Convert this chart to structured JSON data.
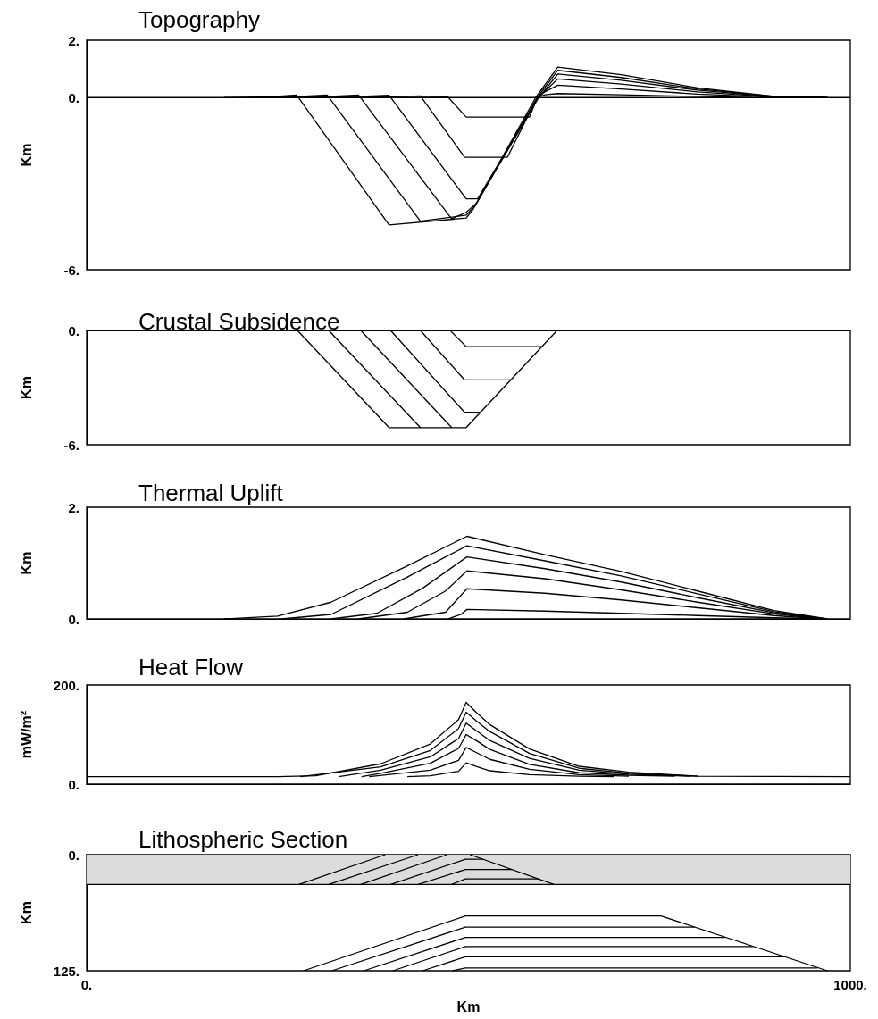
{
  "chart_data": [
    {
      "type": "line",
      "title": "Topography",
      "ylabel": "Km",
      "xlim": [
        0,
        1000
      ],
      "ylim": [
        -6,
        2
      ],
      "yticks": [
        {
          "value": 2,
          "label": "2."
        },
        {
          "value": 0,
          "label": "0."
        },
        {
          "value": -6,
          "label": "-6."
        }
      ],
      "tick_labels": "y",
      "grid": false,
      "marker": "none",
      "line_style": "solid",
      "series": [
        {
          "color": "#000000",
          "x": [
            0,
            1000
          ],
          "values": [
            0,
            0
          ]
        },
        {
          "color": "#000000",
          "x": [
            400,
            450,
            473,
            497,
            580,
            590,
            600,
            617,
            700,
            800,
            870
          ],
          "values": [
            0,
            0.01,
            0.02,
            -0.68,
            -0.68,
            0,
            0.1,
            0.14,
            0.1,
            0.04,
            0
          ]
        },
        {
          "color": "#000000",
          "x": [
            330,
            400,
            437,
            495,
            551,
            590,
            600,
            617,
            700,
            800,
            900,
            950
          ],
          "values": [
            0,
            0.03,
            0.06,
            -2.08,
            -2.08,
            0,
            0.2,
            0.43,
            0.3,
            0.12,
            0.01,
            0
          ]
        },
        {
          "color": "#000000",
          "x": [
            290,
            360,
            396,
            497,
            512,
            591,
            617,
            700,
            800,
            900,
            960
          ],
          "values": [
            0,
            0.04,
            0.08,
            -3.53,
            -3.53,
            0,
            0.65,
            0.47,
            0.2,
            0.02,
            0
          ]
        },
        {
          "color": "#000000",
          "x": [
            250,
            320,
            356,
            478,
            497,
            510,
            592,
            617,
            700,
            800,
            900,
            970
          ],
          "values": [
            0,
            0.04,
            0.09,
            -4.23,
            -4.0,
            -3.7,
            0,
            0.82,
            0.6,
            0.26,
            0.03,
            0
          ]
        },
        {
          "color": "#000000",
          "x": [
            220,
            280,
            315,
            437,
            497,
            508,
            590,
            617,
            700,
            800,
            900,
            970
          ],
          "values": [
            0,
            0.04,
            0.09,
            -4.31,
            -4.1,
            -3.8,
            0,
            0.95,
            0.7,
            0.3,
            0.04,
            0
          ]
        },
        {
          "color": "#000000",
          "x": [
            180,
            240,
            275,
            396,
            497,
            506,
            588,
            617,
            700,
            800,
            900,
            970
          ],
          "values": [
            0,
            0.03,
            0.09,
            -4.44,
            -4.2,
            -3.9,
            0,
            1.06,
            0.8,
            0.34,
            0.04,
            0
          ]
        }
      ]
    },
    {
      "type": "line",
      "title": "Crustal Subsidence",
      "ylabel": "Km",
      "xlim": [
        0,
        1000
      ],
      "ylim": [
        -6,
        0
      ],
      "yticks": [
        {
          "value": 0,
          "label": "0."
        },
        {
          "value": -6,
          "label": "-6."
        }
      ],
      "tick_labels": "y",
      "grid": false,
      "marker": "none",
      "line_style": "solid",
      "series": [
        {
          "color": "#000000",
          "x": [
            476,
            497,
            596
          ],
          "values": [
            0,
            -0.85,
            -0.85
          ]
        },
        {
          "color": "#000000",
          "x": [
            437,
            495,
            555
          ],
          "values": [
            0,
            -2.6,
            -2.6
          ]
        },
        {
          "color": "#000000",
          "x": [
            398,
            495,
            516
          ],
          "values": [
            0,
            -4.3,
            -4.3
          ]
        },
        {
          "color": "#000000",
          "x": [
            359,
            478
          ],
          "values": [
            0,
            -5.1
          ]
        },
        {
          "color": "#000000",
          "x": [
            317,
            437
          ],
          "values": [
            0,
            -5.1
          ]
        },
        {
          "color": "#000000",
          "x": [
            276,
            396,
            497,
            616
          ],
          "values": [
            0,
            -5.1,
            -5.1,
            0
          ]
        }
      ]
    },
    {
      "type": "line",
      "title": "Thermal Uplift",
      "ylabel": "Km",
      "xlim": [
        0,
        1000
      ],
      "ylim": [
        0,
        2
      ],
      "yticks": [
        {
          "value": 2,
          "label": "2."
        },
        {
          "value": 0,
          "label": "0."
        }
      ],
      "tick_labels": "y",
      "grid": false,
      "marker": "none",
      "line_style": "solid",
      "series": [
        {
          "color": "#000000",
          "x": [
            180,
            250,
            320,
            420,
            498,
            600,
            700,
            800,
            900,
            970
          ],
          "values": [
            0,
            0.05,
            0.3,
            0.95,
            1.48,
            1.15,
            0.85,
            0.5,
            0.15,
            0
          ]
        },
        {
          "color": "#000000",
          "x": [
            255,
            320,
            420,
            498,
            600,
            700,
            800,
            900,
            968
          ],
          "values": [
            0,
            0.08,
            0.75,
            1.31,
            1.04,
            0.77,
            0.45,
            0.13,
            0
          ]
        },
        {
          "color": "#000000",
          "x": [
            320,
            380,
            440,
            498,
            600,
            700,
            800,
            900,
            966
          ],
          "values": [
            0,
            0.1,
            0.55,
            1.11,
            0.9,
            0.66,
            0.38,
            0.11,
            0
          ]
        },
        {
          "color": "#000000",
          "x": [
            356,
            420,
            470,
            498,
            600,
            700,
            800,
            900,
            964
          ],
          "values": [
            0,
            0.12,
            0.5,
            0.86,
            0.72,
            0.52,
            0.3,
            0.09,
            0
          ]
        },
        {
          "color": "#000000",
          "x": [
            415,
            470,
            498,
            600,
            700,
            800,
            900,
            962
          ],
          "values": [
            0,
            0.12,
            0.54,
            0.46,
            0.34,
            0.2,
            0.06,
            0
          ]
        },
        {
          "color": "#000000",
          "x": [
            473,
            490,
            498,
            600,
            700,
            800,
            900,
            960
          ],
          "values": [
            0,
            0.08,
            0.17,
            0.14,
            0.1,
            0.06,
            0.02,
            0
          ]
        }
      ]
    },
    {
      "type": "line",
      "title": "Heat Flow",
      "ylabel": "mW/m²",
      "xlim": [
        0,
        1000
      ],
      "ylim": [
        0,
        200
      ],
      "yticks": [
        {
          "value": 200,
          "label": "200."
        },
        {
          "value": 0,
          "label": "0."
        }
      ],
      "tick_labels": "y",
      "grid": false,
      "marker": "none",
      "line_style": "solid",
      "series": [
        {
          "color": "#000000",
          "x": [
            0,
            250,
            300,
            385,
            450,
            487,
            497,
            510,
            528,
            580,
            645,
            710,
            800,
            1000
          ],
          "values": [
            15,
            15,
            17,
            41,
            81,
            130,
            165,
            145,
            120,
            71,
            36,
            24,
            16,
            15
          ]
        },
        {
          "color": "#000000",
          "x": [
            280,
            385,
            450,
            487,
            497,
            510,
            528,
            580,
            645,
            710,
            800
          ],
          "values": [
            15,
            35,
            68,
            112,
            145,
            128,
            106,
            62,
            32,
            22,
            16
          ]
        },
        {
          "color": "#000000",
          "x": [
            330,
            385,
            450,
            487,
            497,
            510,
            528,
            580,
            645,
            710,
            790
          ],
          "values": [
            15,
            28,
            55,
            92,
            123,
            108,
            88,
            52,
            28,
            20,
            16
          ]
        },
        {
          "color": "#000000",
          "x": [
            360,
            385,
            450,
            487,
            497,
            510,
            528,
            580,
            645,
            710,
            770
          ],
          "values": [
            15,
            22,
            42,
            72,
            100,
            88,
            70,
            40,
            23,
            18,
            16
          ]
        },
        {
          "color": "#000000",
          "x": [
            370,
            450,
            487,
            497,
            510,
            528,
            580,
            645,
            710
          ],
          "values": [
            15,
            28,
            48,
            74,
            64,
            50,
            30,
            19,
            16
          ]
        },
        {
          "color": "#000000",
          "x": [
            420,
            450,
            487,
            497,
            510,
            528,
            580,
            645,
            690
          ],
          "values": [
            15,
            17,
            26,
            43,
            36,
            27,
            19,
            16,
            15
          ]
        }
      ]
    },
    {
      "type": "line",
      "title": "Lithospheric Section",
      "xlabel": "Km",
      "ylabel": "Km",
      "xlim": [
        0,
        1000
      ],
      "ylim": [
        125,
        0
      ],
      "xticks": [
        {
          "value": 0,
          "label": "0."
        },
        {
          "value": 1000,
          "label": "1000."
        }
      ],
      "yticks": [
        {
          "value": 0,
          "label": "0."
        },
        {
          "value": 125,
          "label": "125."
        }
      ],
      "grid": false,
      "marker": "none",
      "line_style": "solid",
      "bands": [
        {
          "axis": "y",
          "from": 0,
          "to": 32,
          "color": "#dcdcdc"
        }
      ],
      "series": [
        {
          "color": "#000000",
          "x": [
            0,
            1000
          ],
          "values": [
            32,
            32
          ]
        },
        {
          "color": "#000000",
          "x": [
            478,
            496,
            593
          ],
          "values": [
            32,
            26,
            26
          ]
        },
        {
          "color": "#000000",
          "x": [
            434,
            496,
            557
          ],
          "values": [
            32,
            16,
            16
          ]
        },
        {
          "color": "#000000",
          "x": [
            398,
            496,
            519
          ],
          "values": [
            32,
            5,
            5
          ]
        },
        {
          "color": "#000000",
          "x": [
            359,
            472
          ],
          "values": [
            32,
            0
          ]
        },
        {
          "color": "#000000",
          "x": [
            317,
            434
          ],
          "values": [
            32,
            0
          ]
        },
        {
          "color": "#000000",
          "x": [
            278,
            391
          ],
          "values": [
            32,
            0
          ]
        },
        {
          "color": "#000000",
          "x": [
            502,
            612
          ],
          "values": [
            0,
            32
          ]
        },
        {
          "color": "#000000",
          "x": [
            284,
            496,
            752,
            970
          ],
          "values": [
            125,
            66,
            66,
            125
          ]
        },
        {
          "color": "#000000",
          "x": [
            321,
            496,
            796
          ],
          "values": [
            125,
            78,
            78
          ]
        },
        {
          "color": "#000000",
          "x": [
            363,
            496,
            836
          ],
          "values": [
            125,
            89,
            89
          ]
        },
        {
          "color": "#000000",
          "x": [
            401,
            496,
            873
          ],
          "values": [
            125,
            99,
            99
          ]
        },
        {
          "color": "#000000",
          "x": [
            440,
            496,
            914
          ],
          "values": [
            125,
            110,
            110
          ]
        },
        {
          "color": "#000000",
          "x": [
            479,
            496,
            957
          ],
          "values": [
            125,
            122,
            122
          ]
        }
      ]
    }
  ]
}
